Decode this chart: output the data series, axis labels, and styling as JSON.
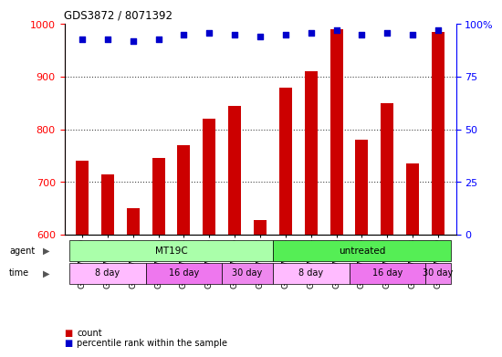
{
  "title": "GDS3872 / 8071392",
  "samples": [
    "GSM579080",
    "GSM579081",
    "GSM579082",
    "GSM579083",
    "GSM579084",
    "GSM579085",
    "GSM579086",
    "GSM579087",
    "GSM579073",
    "GSM579074",
    "GSM579075",
    "GSM579076",
    "GSM579077",
    "GSM579078",
    "GSM579079"
  ],
  "counts": [
    740,
    715,
    650,
    745,
    770,
    820,
    845,
    628,
    880,
    910,
    990,
    780,
    850,
    735,
    985
  ],
  "percentiles": [
    93,
    93,
    92,
    93,
    95,
    96,
    95,
    94,
    95,
    96,
    97,
    95,
    96,
    95,
    97
  ],
  "bar_color": "#cc0000",
  "dot_color": "#0000cc",
  "ylim_left": [
    600,
    1000
  ],
  "ylim_right": [
    0,
    100
  ],
  "yticks_left": [
    600,
    700,
    800,
    900,
    1000
  ],
  "yticks_right": [
    0,
    25,
    50,
    75,
    100
  ],
  "agent_groups": [
    {
      "label": "MT19C",
      "start": 0,
      "end": 8,
      "color": "#aaffaa"
    },
    {
      "label": "untreated",
      "start": 8,
      "end": 15,
      "color": "#55ee55"
    }
  ],
  "time_groups": [
    {
      "label": "8 day",
      "start": 0,
      "end": 3,
      "color": "#ffbbff"
    },
    {
      "label": "16 day",
      "start": 3,
      "end": 6,
      "color": "#ee77ee"
    },
    {
      "label": "30 day",
      "start": 6,
      "end": 8,
      "color": "#ee88ee"
    },
    {
      "label": "8 day",
      "start": 8,
      "end": 11,
      "color": "#ffbbff"
    },
    {
      "label": "16 day",
      "start": 11,
      "end": 14,
      "color": "#ee77ee"
    },
    {
      "label": "30 day",
      "start": 14,
      "end": 15,
      "color": "#ee88ee"
    }
  ],
  "legend_count_color": "#cc0000",
  "legend_dot_color": "#0000cc",
  "grid_color": "#444444",
  "bar_bottom": 600
}
